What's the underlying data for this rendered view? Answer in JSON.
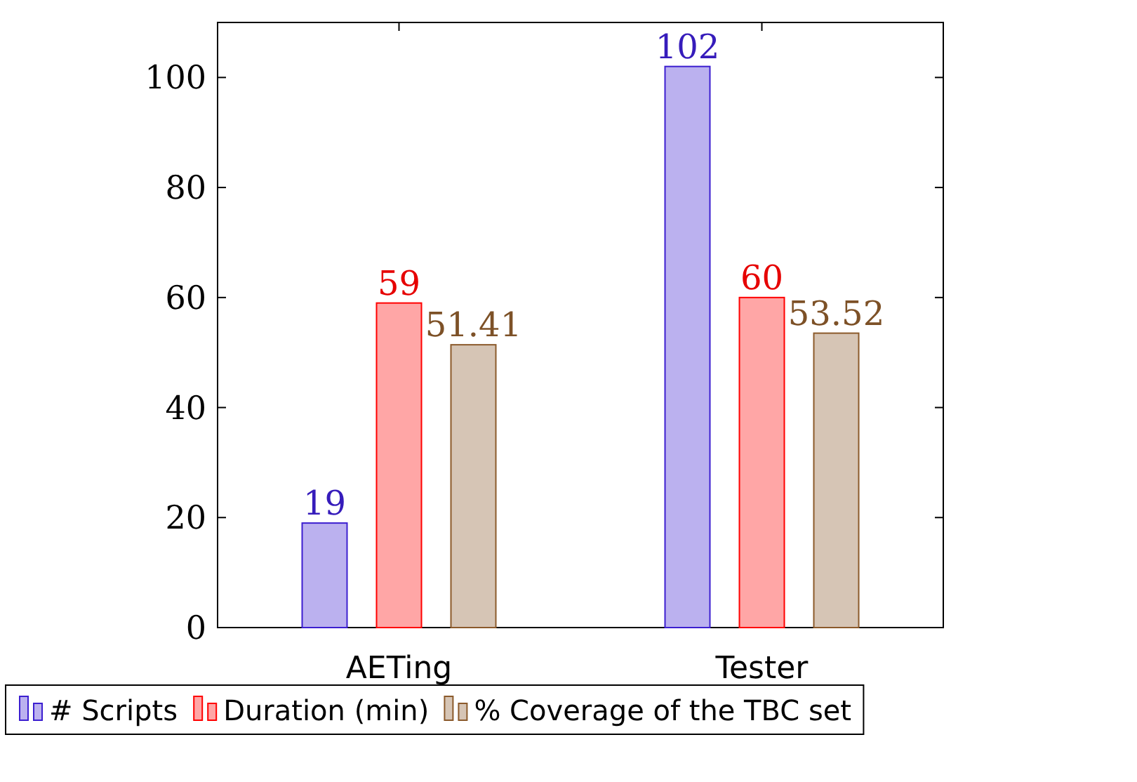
{
  "chart_data": {
    "type": "bar",
    "categories": [
      "AETing",
      "Tester"
    ],
    "series": [
      {
        "name": "# Scripts",
        "color": "#3c1fd0",
        "values": [
          19,
          102
        ]
      },
      {
        "name": "Duration (min)",
        "color": "#ff0000",
        "values": [
          59,
          60
        ]
      },
      {
        "name": "% Coverage of the TBC set",
        "color": "#8b5a2b",
        "values": [
          51.41,
          53.52
        ]
      }
    ],
    "ylim": [
      0,
      110
    ],
    "yticks": [
      0,
      20,
      40,
      60,
      80,
      100
    ],
    "data_labels": true,
    "legend": "bottom",
    "grid": false
  }
}
